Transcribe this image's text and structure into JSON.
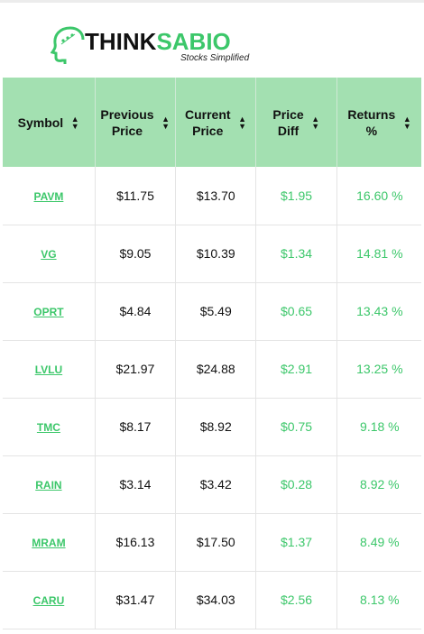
{
  "brand": {
    "name_part1": "THINK",
    "name_part2": "SABIO",
    "tagline": "Stocks Simplified",
    "accent_color": "#3cc76a",
    "header_bg": "#a3e0b1"
  },
  "table": {
    "headers": [
      {
        "line1": "Symbol",
        "line2": ""
      },
      {
        "line1": "Previous",
        "line2": "Price"
      },
      {
        "line1": "Current",
        "line2": "Price"
      },
      {
        "line1": "Price",
        "line2": "Diff"
      },
      {
        "line1": "Returns",
        "line2": "%"
      }
    ],
    "rows": [
      {
        "symbol": "PAVM",
        "previous": "$11.75",
        "current": "$13.70",
        "diff": "$1.95",
        "returns": "16.60 %"
      },
      {
        "symbol": "VG",
        "previous": "$9.05",
        "current": "$10.39",
        "diff": "$1.34",
        "returns": "14.81 %"
      },
      {
        "symbol": "OPRT",
        "previous": "$4.84",
        "current": "$5.49",
        "diff": "$0.65",
        "returns": "13.43 %"
      },
      {
        "symbol": "LVLU",
        "previous": "$21.97",
        "current": "$24.88",
        "diff": "$2.91",
        "returns": "13.25 %"
      },
      {
        "symbol": "TMC",
        "previous": "$8.17",
        "current": "$8.92",
        "diff": "$0.75",
        "returns": "9.18 %"
      },
      {
        "symbol": "RAIN",
        "previous": "$3.14",
        "current": "$3.42",
        "diff": "$0.28",
        "returns": "8.92 %"
      },
      {
        "symbol": "MRAM",
        "previous": "$16.13",
        "current": "$17.50",
        "diff": "$1.37",
        "returns": "8.49 %"
      },
      {
        "symbol": "CARU",
        "previous": "$31.47",
        "current": "$34.03",
        "diff": "$2.56",
        "returns": "8.13 %"
      }
    ]
  }
}
